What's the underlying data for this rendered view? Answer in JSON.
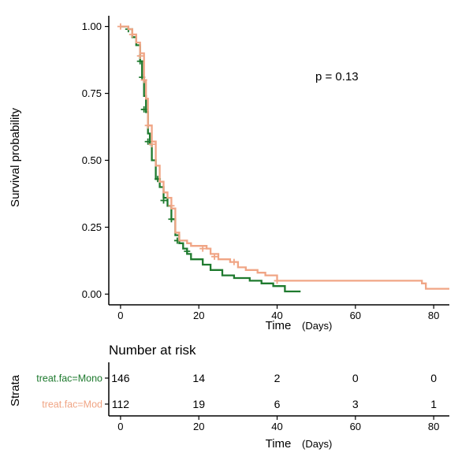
{
  "colors": {
    "mono": "#1e7a2e",
    "mod": "#f0a585",
    "axis": "#000000"
  },
  "annotation": "p = 0.13",
  "chart_data": {
    "type": "line",
    "subtype": "kaplan-meier step",
    "ylabel": "Survival probability",
    "xlabel": "Time",
    "xlabel_unit": "(Days)",
    "xlim": [
      -3,
      84
    ],
    "ylim": [
      -0.04,
      1.04
    ],
    "xticks": [
      0,
      20,
      40,
      60,
      80
    ],
    "yticks": [
      "0.00",
      "0.25",
      "0.50",
      "0.75",
      "1.00"
    ],
    "ytick_values": [
      0,
      0.25,
      0.5,
      0.75,
      1.0
    ],
    "grid": false,
    "series": [
      {
        "name": "treat.fac=Mono",
        "color": "#1e7a2e",
        "steps": [
          [
            0,
            1.0
          ],
          [
            2,
            0.99
          ],
          [
            3,
            0.96
          ],
          [
            4,
            0.93
          ],
          [
            5,
            0.87
          ],
          [
            5.5,
            0.81
          ],
          [
            6,
            0.74
          ],
          [
            6.5,
            0.68
          ],
          [
            7,
            0.6
          ],
          [
            7.5,
            0.56
          ],
          [
            8,
            0.5
          ],
          [
            9,
            0.43
          ],
          [
            10,
            0.4
          ],
          [
            11,
            0.36
          ],
          [
            12,
            0.33
          ],
          [
            13,
            0.28
          ],
          [
            14,
            0.22
          ],
          [
            15,
            0.19
          ],
          [
            16,
            0.17
          ],
          [
            17,
            0.15
          ],
          [
            18,
            0.13
          ],
          [
            21,
            0.11
          ],
          [
            23,
            0.09
          ],
          [
            26,
            0.07
          ],
          [
            29,
            0.06
          ],
          [
            33,
            0.05
          ],
          [
            36,
            0.04
          ],
          [
            39,
            0.03
          ],
          [
            42,
            0.01
          ],
          [
            46,
            0.01
          ]
        ],
        "censor_marks": [
          [
            2,
            0.99
          ],
          [
            5,
            0.87
          ],
          [
            5.5,
            0.81
          ],
          [
            6,
            0.69
          ],
          [
            7,
            0.57
          ],
          [
            9.5,
            0.43
          ],
          [
            11,
            0.35
          ],
          [
            13,
            0.28
          ],
          [
            14.5,
            0.2
          ],
          [
            17,
            0.16
          ]
        ]
      },
      {
        "name": "treat.fac=Mod",
        "color": "#f0a585",
        "steps": [
          [
            0,
            1.0
          ],
          [
            2,
            0.99
          ],
          [
            3,
            0.97
          ],
          [
            4,
            0.94
          ],
          [
            5,
            0.9
          ],
          [
            6,
            0.8
          ],
          [
            6.5,
            0.73
          ],
          [
            7,
            0.63
          ],
          [
            8,
            0.57
          ],
          [
            9,
            0.48
          ],
          [
            10,
            0.42
          ],
          [
            11,
            0.38
          ],
          [
            12,
            0.36
          ],
          [
            13,
            0.32
          ],
          [
            14,
            0.23
          ],
          [
            15,
            0.2
          ],
          [
            17,
            0.19
          ],
          [
            18,
            0.18
          ],
          [
            22,
            0.17
          ],
          [
            23,
            0.15
          ],
          [
            25,
            0.13
          ],
          [
            28,
            0.12
          ],
          [
            30,
            0.1
          ],
          [
            32,
            0.09
          ],
          [
            35,
            0.08
          ],
          [
            37,
            0.07
          ],
          [
            40,
            0.05
          ],
          [
            77,
            0.04
          ],
          [
            78,
            0.02
          ],
          [
            84,
            0.02
          ]
        ],
        "censor_marks": [
          [
            0,
            1.0
          ],
          [
            3,
            0.97
          ],
          [
            5,
            0.89
          ],
          [
            6,
            0.8
          ],
          [
            7,
            0.63
          ],
          [
            8,
            0.56
          ],
          [
            13,
            0.33
          ],
          [
            21,
            0.17
          ],
          [
            24,
            0.14
          ],
          [
            29,
            0.12
          ],
          [
            40,
            0.05
          ]
        ]
      }
    ]
  },
  "risk_table": {
    "title": "Number at risk",
    "strata_label": "Strata",
    "xlabel": "Time",
    "xlabel_unit": "(Days)",
    "times": [
      0,
      20,
      40,
      60,
      80
    ],
    "rows": [
      {
        "label": "treat.fac=Mono",
        "color": "#1e7a2e",
        "counts": [
          146,
          14,
          2,
          0,
          0
        ]
      },
      {
        "label": "treat.fac=Mod",
        "color": "#f0a585",
        "counts": [
          112,
          19,
          6,
          3,
          1
        ]
      }
    ]
  }
}
